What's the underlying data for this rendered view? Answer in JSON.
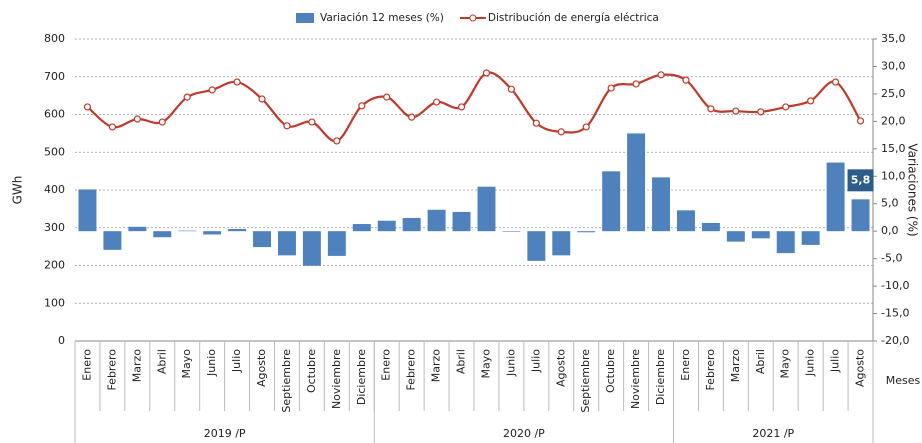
{
  "chart_data": {
    "type": "bar-line",
    "y_label": "GWh",
    "y2_label": "Variaciones (%)",
    "x_label": "Meses",
    "groups": [
      {
        "name": "2019 /P",
        "categories": [
          "Enero",
          "Febrero",
          "Marzo",
          "Abril",
          "Mayo",
          "Junio",
          "Julio",
          "Agosto",
          "Septiembre",
          "Octubre",
          "Noviembre",
          "Diciembre"
        ]
      },
      {
        "name": "2020 /P",
        "categories": [
          "Enero",
          "Febrero",
          "Marzo",
          "Abril",
          "Mayo",
          "Junio",
          "Julio",
          "Agosto",
          "Septiembre",
          "Octubre",
          "Noviembre",
          "Diciembre"
        ]
      },
      {
        "name": "2021 /P",
        "categories": [
          "Enero",
          "Febrero",
          "Marzo",
          "Abril",
          "Mayo",
          "Junio",
          "Julio",
          "Agosto"
        ]
      }
    ],
    "series": [
      {
        "name": "Variación 12 meses (%)",
        "type": "bar",
        "axis": "y2",
        "color": "#4f81bd",
        "values": [
          7.6,
          -3.4,
          0.8,
          -1.1,
          0.1,
          -0.6,
          0.4,
          -2.9,
          -4.4,
          -6.3,
          -4.5,
          1.3,
          1.9,
          2.4,
          3.9,
          3.5,
          8.1,
          -0.1,
          -5.4,
          -4.4,
          -0.2,
          10.9,
          17.8,
          9.8,
          3.8,
          1.5,
          -1.9,
          -1.3,
          -4.0,
          -2.5,
          12.5,
          5.8
        ],
        "value_labels": [
          null,
          null,
          null,
          null,
          null,
          null,
          null,
          null,
          null,
          null,
          null,
          null,
          null,
          null,
          null,
          null,
          null,
          null,
          null,
          null,
          null,
          null,
          null,
          null,
          null,
          null,
          null,
          null,
          null,
          null,
          null,
          "5,8"
        ]
      },
      {
        "name": "Distribución de energía eléctrica",
        "type": "line",
        "color": "#c0392b",
        "values": [
          620,
          567,
          588,
          580,
          646,
          665,
          686,
          641,
          570,
          580,
          530,
          623,
          646,
          593,
          633,
          620,
          710,
          667,
          577,
          554,
          567,
          670,
          681,
          705,
          691,
          615,
          609,
          607,
          620,
          636,
          686,
          583
        ]
      }
    ],
    "ylim": [
      0,
      800
    ],
    "yticks": [
      0,
      100,
      200,
      300,
      400,
      500,
      600,
      700,
      800
    ],
    "y2lim": [
      -20,
      35
    ],
    "y2ticks": [
      {
        "value": -20,
        "label": "-20,0"
      },
      {
        "value": -15,
        "label": "-15,0"
      },
      {
        "value": -10,
        "label": "-10,0"
      },
      {
        "value": -5,
        "label": "-5,0"
      },
      {
        "value": 0,
        "label": "0,0"
      },
      {
        "value": 5,
        "label": "5,0"
      },
      {
        "value": 10,
        "label": "10,0"
      },
      {
        "value": 15,
        "label": "15,0"
      },
      {
        "value": 20,
        "label": "20,0"
      },
      {
        "value": 25,
        "label": "25,0"
      },
      {
        "value": 30,
        "label": "30,0"
      },
      {
        "value": 35,
        "label": "35,0"
      }
    ],
    "grid": true,
    "legend": "top"
  }
}
